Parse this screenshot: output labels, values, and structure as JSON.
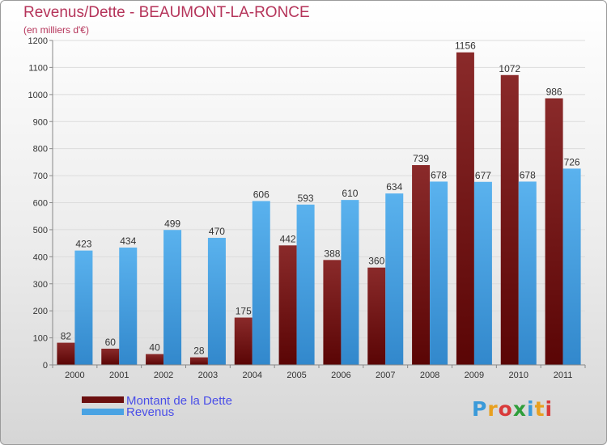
{
  "title": "Revenus/Dette - BEAUMONT-LA-RONCE",
  "subtitle": "(en milliers d'€)",
  "logo": {
    "letters": [
      "P",
      "r",
      "o",
      "x",
      "i",
      "t",
      "i"
    ],
    "colors": [
      "#3a9ad9",
      "#e8a020",
      "#d93a3a",
      "#2e9e3a",
      "#3a9ad9",
      "#e8a020",
      "#d93a3a"
    ]
  },
  "legend": [
    {
      "label": "Montant de la Dette",
      "color": "#6b0f0f"
    },
    {
      "label": "Revenus",
      "color": "#4aa3e3"
    }
  ],
  "chart_data": {
    "type": "bar",
    "title": "Revenus/Dette - BEAUMONT-LA-RONCE",
    "subtitle": "(en milliers d'€)",
    "categories": [
      "2000",
      "2001",
      "2002",
      "2003",
      "2004",
      "2005",
      "2006",
      "2007",
      "2008",
      "2009",
      "2010",
      "2011"
    ],
    "series": [
      {
        "name": "Montant de la Dette",
        "color": "#6b0f0f",
        "values": [
          82,
          60,
          40,
          28,
          175,
          442,
          388,
          360,
          739,
          1156,
          1072,
          986
        ]
      },
      {
        "name": "Revenus",
        "color": "#4aa3e3",
        "values": [
          423,
          434,
          499,
          470,
          606,
          593,
          610,
          634,
          678,
          677,
          678,
          726
        ]
      }
    ],
    "yticks": [
      0,
      100,
      200,
      300,
      400,
      500,
      600,
      700,
      800,
      900,
      1000,
      1100,
      1200
    ],
    "ylim": [
      0,
      1200
    ],
    "grid": true,
    "legend_position": "bottom-left"
  }
}
